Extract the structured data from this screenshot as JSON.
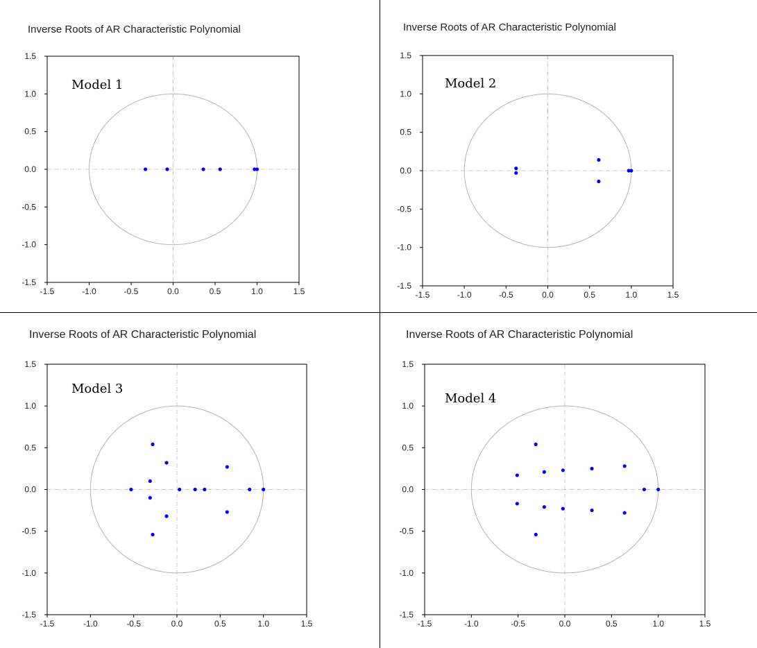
{
  "chart_data": [
    {
      "type": "scatter",
      "title": "Inverse Roots of AR Characteristic Polynomial",
      "annotation": "Model 1",
      "xlim": [
        -1.5,
        1.5
      ],
      "ylim": [
        -1.5,
        1.5
      ],
      "xticks": [
        "-1.5",
        "-1.0",
        "-0.5",
        "0.0",
        "0.5",
        "1.0",
        "1.5"
      ],
      "yticks": [
        "1.5",
        "1.0",
        "0.5",
        "0.0",
        "-0.5",
        "-1.0",
        "-1.5"
      ],
      "unit_circle": true,
      "points": [
        {
          "x": -0.33,
          "y": 0.0
        },
        {
          "x": -0.07,
          "y": 0.0
        },
        {
          "x": 0.36,
          "y": 0.0
        },
        {
          "x": 0.56,
          "y": 0.0
        },
        {
          "x": 0.97,
          "y": 0.0
        },
        {
          "x": 1.0,
          "y": 0.0
        }
      ]
    },
    {
      "type": "scatter",
      "title": "Inverse Roots of AR Characteristic Polynomial",
      "annotation": "Model 2",
      "xlim": [
        -1.5,
        1.5
      ],
      "ylim": [
        -1.5,
        1.5
      ],
      "xticks": [
        "-1.5",
        "-1.0",
        "-0.5",
        "0.0",
        "0.5",
        "1.0",
        "1.5"
      ],
      "yticks": [
        "1.5",
        "1.0",
        "0.5",
        "0.0",
        "-0.5",
        "-1.0",
        "-1.5"
      ],
      "unit_circle": true,
      "points": [
        {
          "x": -0.38,
          "y": 0.03
        },
        {
          "x": -0.38,
          "y": -0.03
        },
        {
          "x": 0.61,
          "y": 0.14
        },
        {
          "x": 0.61,
          "y": -0.14
        },
        {
          "x": 0.97,
          "y": 0.0
        },
        {
          "x": 1.0,
          "y": 0.0
        }
      ]
    },
    {
      "type": "scatter",
      "title": "Inverse Roots of AR Characteristic Polynomial",
      "annotation": "Model 3",
      "xlim": [
        -1.5,
        1.5
      ],
      "ylim": [
        -1.5,
        1.5
      ],
      "xticks": [
        "-1.5",
        "-1.0",
        "-0.5",
        "0.0",
        "0.5",
        "1.0",
        "1.5"
      ],
      "yticks": [
        "1.5",
        "1.0",
        "0.5",
        "0.0",
        "-0.5",
        "-1.0",
        "-1.5"
      ],
      "unit_circle": true,
      "points": [
        {
          "x": -0.53,
          "y": 0.0
        },
        {
          "x": -0.31,
          "y": 0.1
        },
        {
          "x": -0.31,
          "y": -0.1
        },
        {
          "x": -0.28,
          "y": 0.54
        },
        {
          "x": -0.28,
          "y": -0.54
        },
        {
          "x": -0.12,
          "y": 0.32
        },
        {
          "x": -0.12,
          "y": -0.32
        },
        {
          "x": 0.03,
          "y": 0.0
        },
        {
          "x": 0.21,
          "y": 0.0
        },
        {
          "x": 0.32,
          "y": 0.0
        },
        {
          "x": 0.58,
          "y": 0.27
        },
        {
          "x": 0.58,
          "y": -0.27
        },
        {
          "x": 0.84,
          "y": 0.0
        },
        {
          "x": 1.0,
          "y": 0.0
        }
      ]
    },
    {
      "type": "scatter",
      "title": "Inverse Roots of AR Characteristic Polynomial",
      "annotation": "Model 4",
      "xlim": [
        -1.5,
        1.5
      ],
      "ylim": [
        -1.5,
        1.5
      ],
      "xticks": [
        "-1.5",
        "-1.0",
        "-0.5",
        "0.0",
        "0.5",
        "1.0",
        "1.5"
      ],
      "yticks": [
        "1.5",
        "1.0",
        "0.5",
        "0.0",
        "-0.5",
        "-1.0",
        "-1.5"
      ],
      "unit_circle": true,
      "points": [
        {
          "x": -0.51,
          "y": 0.17
        },
        {
          "x": -0.51,
          "y": -0.17
        },
        {
          "x": -0.31,
          "y": 0.54
        },
        {
          "x": -0.31,
          "y": -0.54
        },
        {
          "x": -0.22,
          "y": 0.21
        },
        {
          "x": -0.22,
          "y": -0.21
        },
        {
          "x": -0.02,
          "y": 0.23
        },
        {
          "x": -0.02,
          "y": -0.23
        },
        {
          "x": 0.29,
          "y": 0.25
        },
        {
          "x": 0.29,
          "y": -0.25
        },
        {
          "x": 0.64,
          "y": 0.28
        },
        {
          "x": 0.64,
          "y": -0.28
        },
        {
          "x": 0.85,
          "y": 0.0
        },
        {
          "x": 1.0,
          "y": 0.0
        }
      ]
    }
  ],
  "colors": {
    "points": "#0000ff",
    "circle": "#b4b4b4",
    "zero_lines": "#c8c8c8",
    "axes": "#000000",
    "divider": "#000000"
  }
}
